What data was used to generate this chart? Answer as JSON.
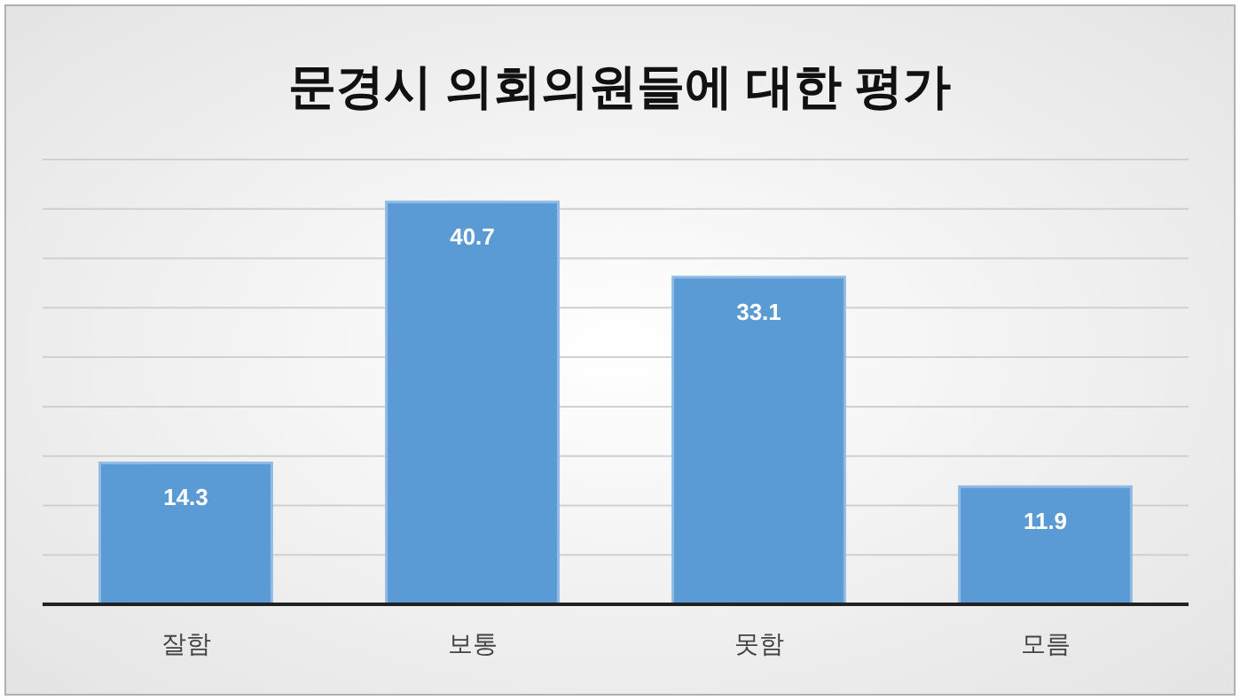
{
  "chart_data": {
    "type": "bar",
    "title": "문경시 의회의원들에 대한 평가",
    "categories": [
      "잘함",
      "보통",
      "못함",
      "모름"
    ],
    "values": [
      14.3,
      40.7,
      33.1,
      11.9
    ],
    "color": "#5b9bd5",
    "ylim": [
      0,
      45
    ],
    "yticks": [
      {
        "value": 0,
        "label": null
      },
      {
        "value": 5,
        "label": null
      },
      {
        "value": 10,
        "label": null
      },
      {
        "value": 15,
        "label": null
      },
      {
        "value": 20,
        "label": null
      },
      {
        "value": 25,
        "label": null
      },
      {
        "value": 30,
        "label": null
      },
      {
        "value": 35,
        "label": null
      },
      {
        "value": 40,
        "label": null
      },
      {
        "value": 45,
        "label": null
      }
    ],
    "tick_labels": "x",
    "grid": "y",
    "data_labels": true
  }
}
